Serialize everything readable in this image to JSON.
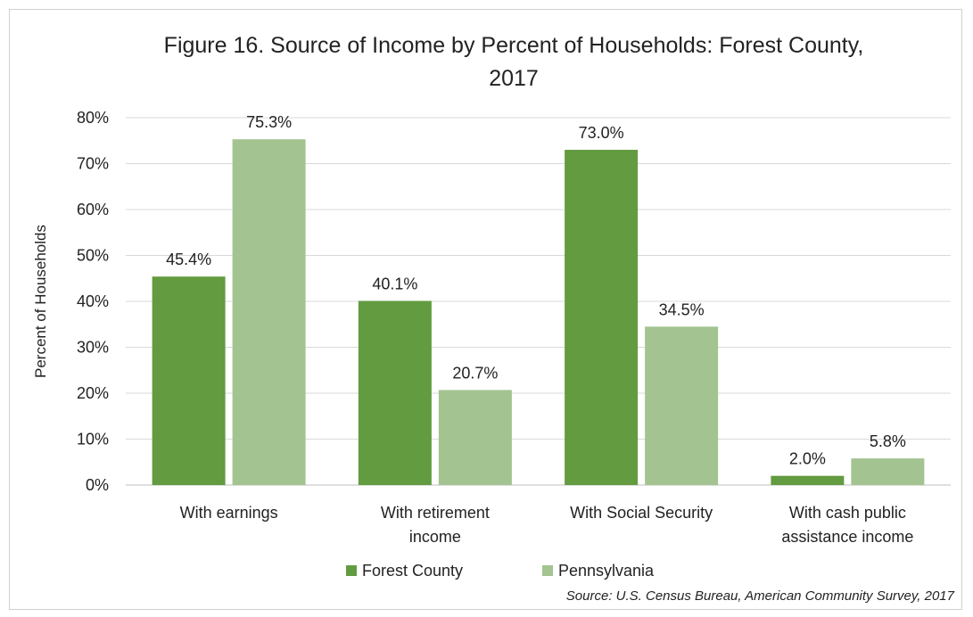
{
  "chart_data": {
    "type": "bar",
    "title_lines": [
      "Figure 16. Source of Income by Percent of Households: Forest County,",
      "2017"
    ],
    "ylabel": "Percent of Households",
    "xlabel": "",
    "ylim": [
      0,
      80
    ],
    "yticks": [
      0,
      10,
      20,
      30,
      40,
      50,
      60,
      70,
      80
    ],
    "ytick_labels": [
      "0%",
      "10%",
      "20%",
      "30%",
      "40%",
      "50%",
      "60%",
      "70%",
      "80%"
    ],
    "grid": true,
    "legend_position": "bottom",
    "categories": [
      [
        "With earnings"
      ],
      [
        "With retirement",
        "income"
      ],
      [
        "With Social Security"
      ],
      [
        "With cash public",
        "assistance income"
      ]
    ],
    "series": [
      {
        "name": "Forest County",
        "color": "#629b40",
        "values": [
          45.4,
          40.1,
          73.0,
          2.0
        ],
        "labels": [
          "45.4%",
          "40.1%",
          "73.0%",
          "2.0%"
        ]
      },
      {
        "name": "Pennsylvania",
        "color": "#a3c491",
        "values": [
          75.3,
          20.7,
          34.5,
          5.8
        ],
        "labels": [
          "75.3%",
          "20.7%",
          "34.5%",
          "5.8%"
        ]
      }
    ],
    "source": "Source: U.S. Census Bureau, American Community Survey, 2017"
  }
}
